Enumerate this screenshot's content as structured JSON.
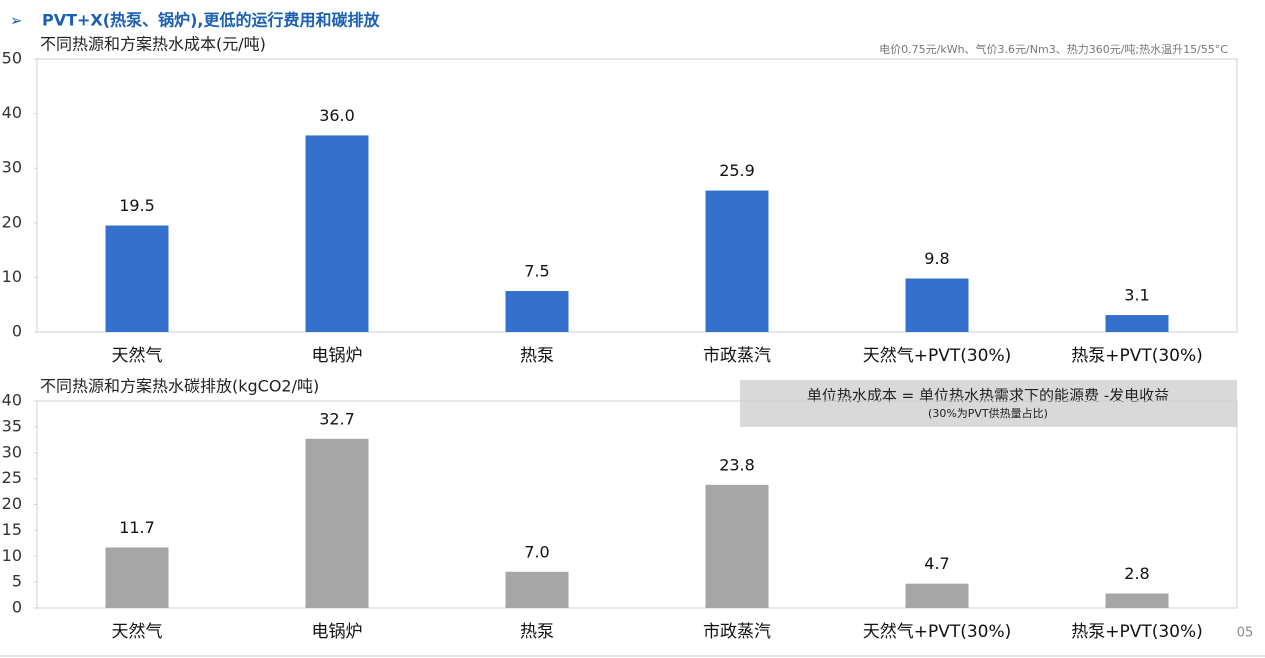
{
  "header": {
    "title": "PVT+X(热泵、锅炉),更低的运行费用和碳排放"
  },
  "chart_data": [
    {
      "type": "bar",
      "title": "不同热源和方案热水成本(元/吨)",
      "note": "电价0.75元/kWh、气价3.6元/Nm3、热力360元/吨;热水温升15/55°C",
      "categories": [
        "天然气",
        "电锅炉",
        "热泵",
        "市政蒸汽",
        "天然气+PVT(30%)",
        "热泵+PVT(30%)"
      ],
      "values": [
        19.5,
        36,
        7.5,
        25.9,
        9.8,
        3.1
      ],
      "value_labels": [
        "19.5",
        "36.0",
        "7.5",
        "25.9",
        "9.8",
        "3.1"
      ],
      "color": "#3370cc",
      "ylim": [
        0,
        50
      ],
      "yticks": [
        0,
        10,
        20,
        30,
        40,
        50
      ]
    },
    {
      "type": "bar",
      "title": "不同热源和方案热水碳排放(kgCO2/吨)",
      "categories": [
        "天然气",
        "电锅炉",
        "热泵",
        "市政蒸汽",
        "天然气+PVT(30%)",
        "热泵+PVT(30%)"
      ],
      "values": [
        11.7,
        32.7,
        7,
        23.8,
        4.7,
        2.8
      ],
      "value_labels": [
        "11.7",
        "32.7",
        "7.0",
        "23.8",
        "4.7",
        "2.8"
      ],
      "color": "#a6a6a6",
      "ylim": [
        0,
        40
      ],
      "yticks": [
        0,
        5,
        10,
        15,
        20,
        25,
        30,
        35,
        40
      ]
    }
  ],
  "callout": {
    "line1": "单位热水成本 = 单位热水热需求下的能源费 -发电收益",
    "line2": "(30%为PVT供热量占比)"
  },
  "page_number": "05"
}
